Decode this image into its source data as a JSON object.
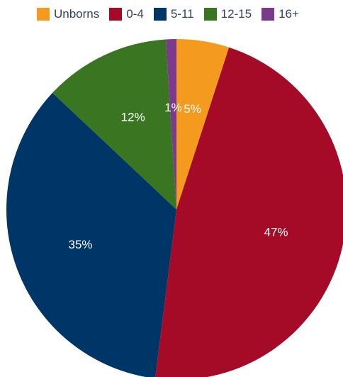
{
  "chart_data": {
    "type": "pie",
    "legend_position": "top",
    "slices": [
      {
        "name": "Unborns",
        "value": 5,
        "label": "5%",
        "color": "#f39a1f"
      },
      {
        "name": "0-4",
        "value": 47,
        "label": "47%",
        "color": "#a50b27"
      },
      {
        "name": "5-11",
        "value": 35,
        "label": "35%",
        "color": "#003567"
      },
      {
        "name": "12-15",
        "value": 12,
        "label": "12%",
        "color": "#3a7521"
      },
      {
        "name": "16+",
        "value": 1,
        "label": "1%",
        "color": "#7b3b8c"
      }
    ]
  }
}
